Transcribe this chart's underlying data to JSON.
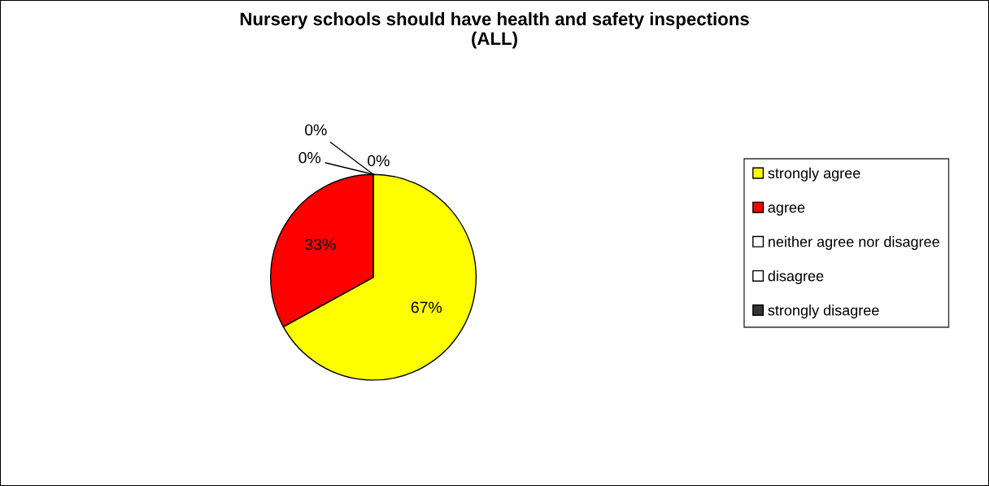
{
  "chart_data": {
    "type": "pie",
    "title": "Nursery schools should have health and safety inspections\n(ALL)",
    "categories": [
      "strongly agree",
      "agree",
      "neither agree nor disagree",
      "disagree",
      "strongly disagree"
    ],
    "values": [
      67,
      33,
      0,
      0,
      0
    ],
    "colors": [
      "#ffff00",
      "#ff0000",
      "#ffffff",
      "#ffffff",
      "#333333"
    ],
    "value_labels": [
      "67%",
      "33%",
      "0%",
      "0%",
      "0%"
    ],
    "legend": "right"
  }
}
